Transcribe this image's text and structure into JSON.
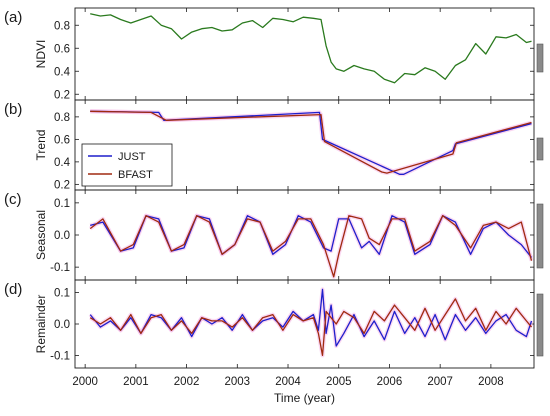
{
  "colors": {
    "ndvi": "#2a7a1e",
    "just": "#1f1fcc",
    "bfast": "#a02a10",
    "halo": "#f5b8e8",
    "axis": "#1a1a1a",
    "scale_bar": "#8a8a8a"
  },
  "x_axis": {
    "label": "Time (year)",
    "range": [
      1999.8,
      2008.85
    ],
    "ticks": [
      "2000",
      "2001",
      "2002",
      "2003",
      "2004",
      "2005",
      "2006",
      "2007",
      "2008"
    ]
  },
  "chart_data": [
    {
      "type": "line",
      "panel_label": "(a)",
      "ylabel": "NDVI",
      "ylim": [
        0.15,
        0.95
      ],
      "yticks": [
        "0.2",
        "0.4",
        "0.6",
        "0.8"
      ],
      "legend": [],
      "series": [
        {
          "name": "",
          "color_key": "ndvi",
          "x": [
            2000.1,
            2000.3,
            2000.5,
            2000.7,
            2000.9,
            2001.1,
            2001.3,
            2001.5,
            2001.7,
            2001.9,
            2002.1,
            2002.3,
            2002.5,
            2002.7,
            2002.9,
            2003.1,
            2003.3,
            2003.5,
            2003.7,
            2003.9,
            2004.1,
            2004.3,
            2004.5,
            2004.65,
            2004.75,
            2004.85,
            2004.95,
            2005.1,
            2005.3,
            2005.5,
            2005.7,
            2005.9,
            2006.1,
            2006.3,
            2006.5,
            2006.7,
            2006.9,
            2007.1,
            2007.3,
            2007.5,
            2007.7,
            2007.9,
            2008.1,
            2008.3,
            2008.5,
            2008.7,
            2008.8
          ],
          "y": [
            0.9,
            0.88,
            0.89,
            0.85,
            0.82,
            0.85,
            0.88,
            0.8,
            0.77,
            0.68,
            0.74,
            0.77,
            0.78,
            0.75,
            0.76,
            0.82,
            0.84,
            0.78,
            0.86,
            0.85,
            0.83,
            0.87,
            0.86,
            0.85,
            0.62,
            0.48,
            0.42,
            0.4,
            0.45,
            0.42,
            0.4,
            0.33,
            0.3,
            0.38,
            0.37,
            0.43,
            0.4,
            0.33,
            0.45,
            0.5,
            0.64,
            0.55,
            0.7,
            0.69,
            0.72,
            0.65,
            0.66
          ]
        }
      ]
    },
    {
      "type": "line",
      "panel_label": "(b)",
      "ylabel": "Trend",
      "ylim": [
        0.15,
        0.95
      ],
      "yticks": [
        "0.2",
        "0.4",
        "0.6",
        "0.8"
      ],
      "legend": [
        "JUST",
        "BFAST"
      ],
      "series": [
        {
          "name": "JUST",
          "color_key": "just",
          "x": [
            2000.1,
            2001.45,
            2001.55,
            2004.62,
            2004.68,
            2006.2,
            2006.28,
            2007.25,
            2007.3,
            2008.8
          ],
          "y": [
            0.85,
            0.84,
            0.77,
            0.84,
            0.6,
            0.29,
            0.29,
            0.5,
            0.56,
            0.74
          ]
        },
        {
          "name": "BFAST",
          "color_key": "bfast",
          "x": [
            2000.1,
            2001.3,
            2001.6,
            2004.65,
            2004.72,
            2005.85,
            2005.95,
            2007.25,
            2007.32,
            2008.8
          ],
          "y": [
            0.85,
            0.84,
            0.77,
            0.82,
            0.58,
            0.31,
            0.3,
            0.47,
            0.57,
            0.75
          ]
        }
      ]
    },
    {
      "type": "line",
      "panel_label": "(c)",
      "ylabel": "Seasonal",
      "ylim": [
        -0.14,
        0.14
      ],
      "yticks": [
        "-0.1",
        "0.0",
        "0.1"
      ],
      "legend": [],
      "series": [
        {
          "name": "JUST",
          "color_key": "just",
          "x": [
            2000.1,
            2000.35,
            2000.7,
            2000.95,
            2001.2,
            2001.45,
            2001.7,
            2001.95,
            2002.2,
            2002.45,
            2002.7,
            2002.95,
            2003.2,
            2003.45,
            2003.7,
            2003.95,
            2004.2,
            2004.45,
            2004.7,
            2004.85,
            2005.0,
            2005.2,
            2005.45,
            2005.6,
            2005.8,
            2006.05,
            2006.3,
            2006.5,
            2006.8,
            2007.05,
            2007.3,
            2007.6,
            2007.85,
            2008.1,
            2008.35,
            2008.6,
            2008.8
          ],
          "y": [
            0.03,
            0.04,
            -0.05,
            -0.04,
            0.06,
            0.05,
            -0.05,
            -0.04,
            0.06,
            0.05,
            -0.06,
            -0.03,
            0.06,
            0.04,
            -0.06,
            -0.03,
            0.06,
            0.04,
            -0.04,
            -0.05,
            0.05,
            0.05,
            -0.04,
            -0.02,
            -0.06,
            0.06,
            0.04,
            -0.06,
            -0.03,
            0.06,
            0.04,
            -0.06,
            0.02,
            0.04,
            0.0,
            -0.03,
            -0.07
          ]
        },
        {
          "name": "BFAST",
          "color_key": "bfast",
          "x": [
            2000.1,
            2000.35,
            2000.7,
            2000.95,
            2001.2,
            2001.45,
            2001.7,
            2001.95,
            2002.2,
            2002.45,
            2002.7,
            2002.95,
            2003.2,
            2003.45,
            2003.7,
            2003.95,
            2004.2,
            2004.45,
            2004.7,
            2004.9,
            2005.0,
            2005.2,
            2005.45,
            2005.6,
            2005.8,
            2006.05,
            2006.3,
            2006.5,
            2006.8,
            2007.05,
            2007.3,
            2007.6,
            2007.85,
            2008.1,
            2008.35,
            2008.6,
            2008.8
          ],
          "y": [
            0.02,
            0.05,
            -0.05,
            -0.03,
            0.06,
            0.04,
            -0.05,
            -0.03,
            0.06,
            0.04,
            -0.06,
            -0.03,
            0.05,
            0.04,
            -0.05,
            -0.02,
            0.05,
            0.05,
            -0.03,
            -0.13,
            -0.06,
            0.06,
            0.05,
            -0.01,
            -0.03,
            0.05,
            0.05,
            -0.05,
            -0.02,
            0.06,
            0.03,
            -0.04,
            0.03,
            0.04,
            0.02,
            0.04,
            -0.08
          ]
        }
      ]
    },
    {
      "type": "line",
      "panel_label": "(d)",
      "ylabel": "Remainder",
      "ylim": [
        -0.14,
        0.14
      ],
      "yticks": [
        "-0.1",
        "0.0",
        "0.1"
      ],
      "legend": [],
      "series": [
        {
          "name": "JUST",
          "color_key": "just",
          "x": [
            2000.1,
            2000.3,
            2000.5,
            2000.7,
            2000.9,
            2001.1,
            2001.3,
            2001.5,
            2001.7,
            2001.9,
            2002.1,
            2002.3,
            2002.5,
            2002.7,
            2002.9,
            2003.1,
            2003.3,
            2003.5,
            2003.7,
            2003.9,
            2004.1,
            2004.3,
            2004.5,
            2004.6,
            2004.68,
            2004.75,
            2004.85,
            2004.95,
            2005.1,
            2005.3,
            2005.5,
            2005.7,
            2005.9,
            2006.1,
            2006.3,
            2006.5,
            2006.7,
            2006.9,
            2007.1,
            2007.3,
            2007.5,
            2007.7,
            2007.9,
            2008.1,
            2008.3,
            2008.5,
            2008.7,
            2008.8
          ],
          "y": [
            0.03,
            -0.01,
            0.01,
            -0.02,
            0.02,
            -0.03,
            0.03,
            0.02,
            -0.02,
            0.02,
            -0.04,
            0.02,
            0.0,
            0.02,
            -0.02,
            0.03,
            -0.02,
            0.01,
            0.02,
            -0.01,
            0.04,
            0.01,
            0.03,
            -0.02,
            0.11,
            -0.03,
            0.06,
            -0.07,
            -0.03,
            0.03,
            -0.04,
            0.01,
            -0.05,
            0.04,
            -0.03,
            0.02,
            -0.04,
            0.03,
            -0.05,
            0.03,
            -0.02,
            0.02,
            -0.03,
            0.01,
            0.03,
            -0.02,
            -0.04,
            0.01
          ]
        },
        {
          "name": "BFAST",
          "color_key": "bfast",
          "x": [
            2000.1,
            2000.3,
            2000.5,
            2000.7,
            2000.9,
            2001.1,
            2001.3,
            2001.5,
            2001.7,
            2001.9,
            2002.1,
            2002.3,
            2002.5,
            2002.7,
            2002.9,
            2003.1,
            2003.3,
            2003.5,
            2003.7,
            2003.9,
            2004.1,
            2004.3,
            2004.5,
            2004.6,
            2004.68,
            2004.75,
            2004.85,
            2004.95,
            2005.1,
            2005.3,
            2005.5,
            2005.7,
            2005.9,
            2006.1,
            2006.3,
            2006.5,
            2006.7,
            2006.9,
            2007.1,
            2007.3,
            2007.5,
            2007.7,
            2007.9,
            2008.1,
            2008.3,
            2008.5,
            2008.7,
            2008.8
          ],
          "y": [
            0.02,
            0.0,
            0.02,
            -0.02,
            0.03,
            -0.03,
            0.02,
            0.03,
            -0.02,
            0.01,
            -0.03,
            0.02,
            0.01,
            0.01,
            -0.01,
            0.02,
            -0.02,
            0.02,
            0.03,
            -0.02,
            0.03,
            0.01,
            0.02,
            -0.03,
            -0.1,
            0.04,
            0.02,
            0.0,
            0.04,
            0.02,
            -0.03,
            0.04,
            0.01,
            0.06,
            0.02,
            -0.02,
            0.05,
            -0.02,
            0.03,
            0.08,
            0.01,
            0.05,
            -0.02,
            0.04,
            0.0,
            0.05,
            0.01,
            -0.01
          ]
        }
      ]
    }
  ]
}
